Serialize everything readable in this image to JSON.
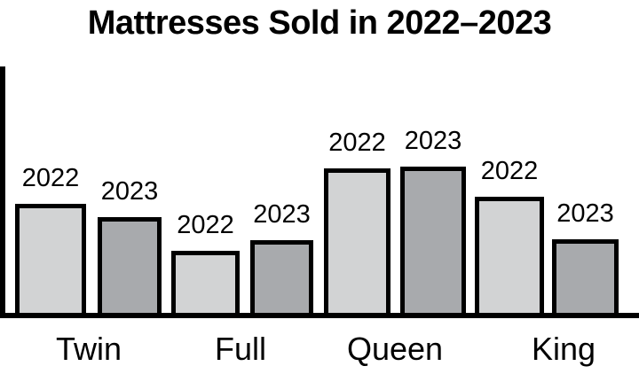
{
  "chart_data": {
    "type": "bar",
    "title": "Mattresses Sold in 2022–2023",
    "categories": [
      "Twin",
      "Full",
      "Queen",
      "King"
    ],
    "series": [
      {
        "name": "2022",
        "color": "#d2d3d4",
        "values": [
          123,
          70,
          163,
          131
        ]
      },
      {
        "name": "2023",
        "color": "#a8aaad",
        "values": [
          108,
          82,
          165,
          83
        ]
      }
    ],
    "value_note": "no numeric y-axis or gridlines shown; values are relative bar heights in screen pixels",
    "bar_value_labels": "series year shown above each bar",
    "legend": "none",
    "axes": {
      "y_ticks": "none",
      "x_ticks": "none",
      "frame": "left y-axis line and bottom x-axis line only"
    },
    "layout_hints": {
      "baseline_y": 353,
      "bar_geometry": [
        [
          17,
          80
        ],
        [
          110,
          72
        ],
        [
          193,
          77
        ],
        [
          282,
          71
        ],
        [
          365,
          75
        ],
        [
          451,
          74
        ],
        [
          535,
          78
        ],
        [
          622,
          75
        ]
      ],
      "category_label_centers": [
        100,
        271,
        445,
        635
      ],
      "axis_color": "#000000",
      "background": "#ffffff"
    }
  }
}
